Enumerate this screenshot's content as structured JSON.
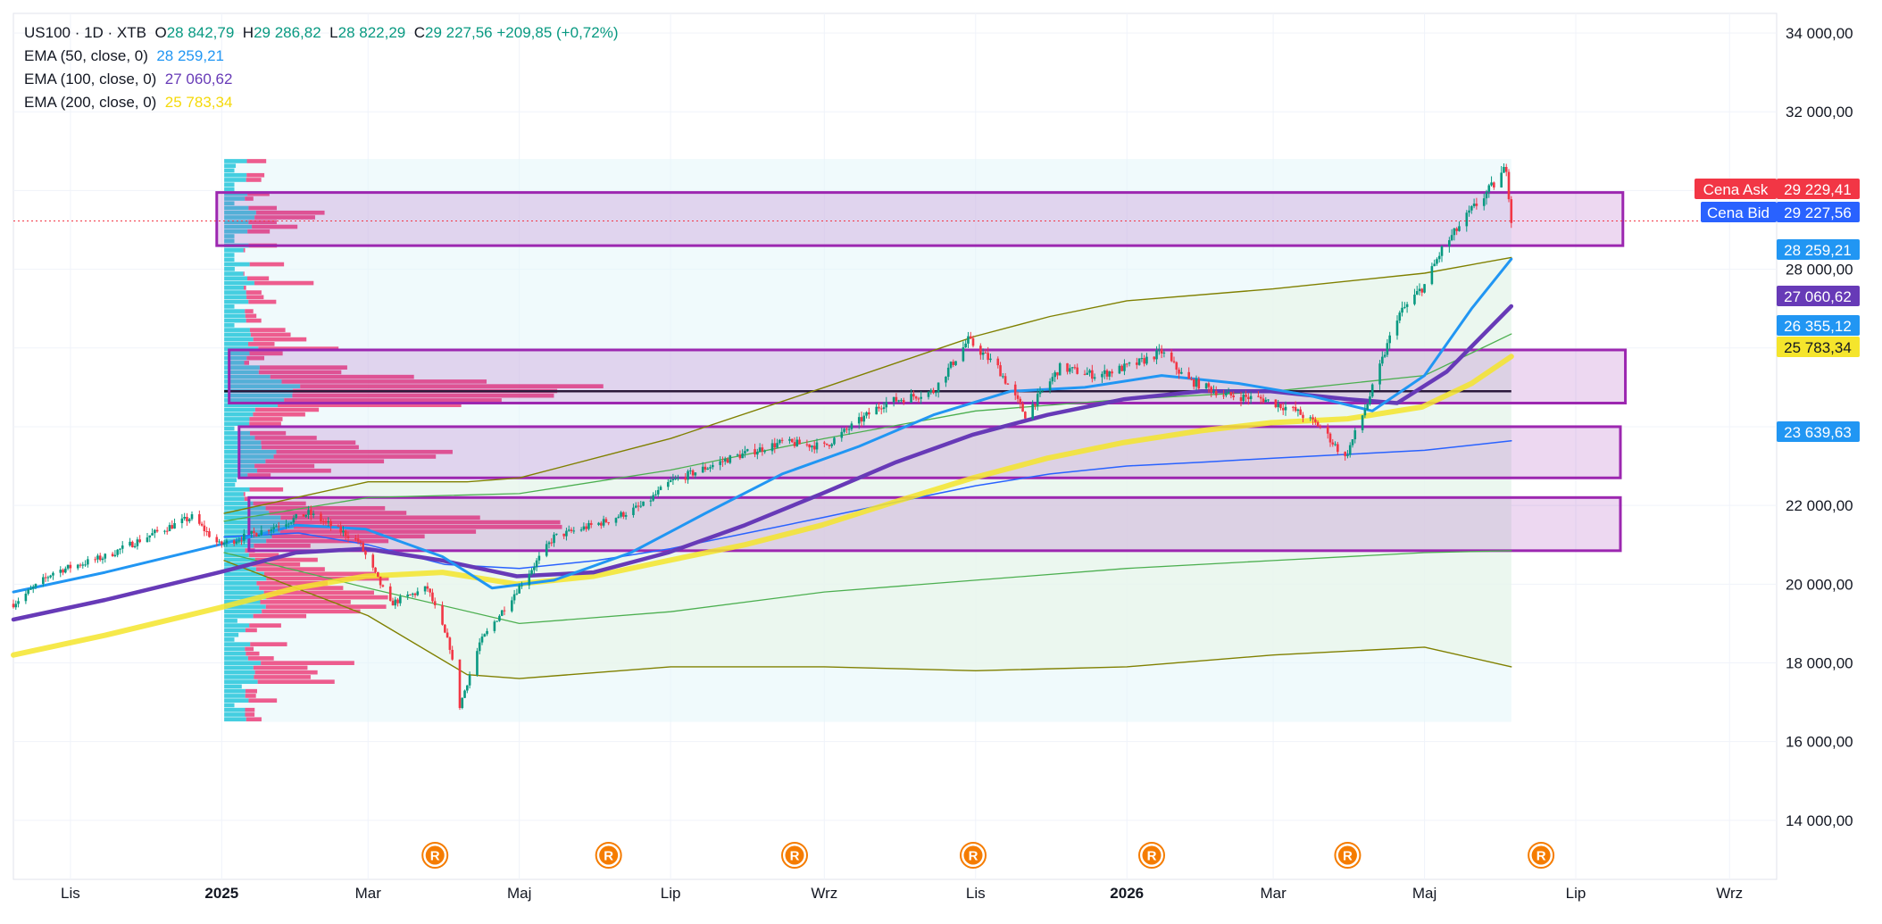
{
  "legend": {
    "symbol": "US100 · 1D · XTB",
    "o_label": "O",
    "o": "28 842,79",
    "h_label": "H",
    "h": "29 286,82",
    "l_label": "L",
    "l": "28 822,29",
    "c_label": "C",
    "c": "29 227,56",
    "change": "+209,85 (+0,72%)",
    "ema50_label": "EMA (50, close, 0)",
    "ema50_value": "28 259,21",
    "ema100_label": "EMA (100, close, 0)",
    "ema100_value": "27 060,62",
    "ema200_label": "EMA (200, close, 0)",
    "ema200_value": "25 783,34"
  },
  "price_tags": {
    "ask_label": "Cena Ask",
    "ask_value": "29 229,41",
    "bid_label": "Cena Bid",
    "bid_value": "29 227,56",
    "tag1": "28 259,21",
    "tag2": "27 060,62",
    "tag3": "26 355,12",
    "tag4": "25 783,34",
    "tag5": "23 639,63"
  },
  "chart_data": {
    "type": "line",
    "symbol": "US100",
    "timeframe": "1D",
    "source": "XTB",
    "y_range": [
      12500,
      34500
    ],
    "y_ticks": [
      14000,
      16000,
      18000,
      20000,
      22000,
      24000,
      26000,
      28000,
      30000,
      32000,
      34000
    ],
    "y_tick_labels": [
      "14 000,00",
      "16 000,00",
      "18 000,00",
      "20 000,00",
      "22 000,00",
      "24 000,00",
      "26 000,00",
      "28 000,00",
      "30 000,00",
      "32 000,00",
      "34 000,00"
    ],
    "x_range": [
      "2024-10-09",
      "2026-09-20"
    ],
    "x_ticks": [
      {
        "date": "2024-11-01",
        "label": "Lis",
        "bold": false
      },
      {
        "date": "2025-01-01",
        "label": "2025",
        "bold": true
      },
      {
        "date": "2025-03-01",
        "label": "Mar",
        "bold": false
      },
      {
        "date": "2025-05-01",
        "label": "Maj",
        "bold": false
      },
      {
        "date": "2025-07-01",
        "label": "Lip",
        "bold": false
      },
      {
        "date": "2025-09-01",
        "label": "Wrz",
        "bold": false
      },
      {
        "date": "2025-11-01",
        "label": "Lis",
        "bold": false
      },
      {
        "date": "2026-01-01",
        "label": "2026",
        "bold": true
      },
      {
        "date": "2026-03-01",
        "label": "Mar",
        "bold": false
      },
      {
        "date": "2026-05-01",
        "label": "Maj",
        "bold": false
      },
      {
        "date": "2026-07-01",
        "label": "Lip",
        "bold": false
      },
      {
        "date": "2026-09-01",
        "label": "Wrz",
        "bold": false
      }
    ],
    "series": [
      {
        "key": "price",
        "color": "#131722",
        "points": [
          [
            "2024-10-09",
            19500
          ],
          [
            "2024-10-25",
            20300
          ],
          [
            "2024-11-15",
            20700
          ],
          [
            "2024-12-05",
            21300
          ],
          [
            "2024-12-20",
            21700
          ],
          [
            "2024-12-31",
            21000
          ],
          [
            "2025-01-15",
            21300
          ],
          [
            "2025-02-05",
            21800
          ],
          [
            "2025-02-25",
            21100
          ],
          [
            "2025-03-10",
            19500
          ],
          [
            "2025-03-25",
            19900
          ],
          [
            "2025-04-03",
            18400
          ],
          [
            "2025-04-07",
            16900
          ],
          [
            "2025-04-15",
            18500
          ],
          [
            "2025-04-25",
            19400
          ],
          [
            "2025-05-15",
            21200
          ],
          [
            "2025-06-05",
            21600
          ],
          [
            "2025-06-20",
            22000
          ],
          [
            "2025-07-01",
            22600
          ],
          [
            "2025-07-25",
            23200
          ],
          [
            "2025-08-15",
            23600
          ],
          [
            "2025-09-01",
            23500
          ],
          [
            "2025-09-25",
            24600
          ],
          [
            "2025-10-15",
            24900
          ],
          [
            "2025-10-29",
            26200
          ],
          [
            "2025-11-10",
            25500
          ],
          [
            "2025-11-21",
            24300
          ],
          [
            "2025-12-05",
            25500
          ],
          [
            "2025-12-20",
            25300
          ],
          [
            "2026-01-05",
            25600
          ],
          [
            "2026-01-15",
            25900
          ],
          [
            "2026-01-25",
            25200
          ],
          [
            "2026-02-10",
            24800
          ],
          [
            "2026-02-25",
            24700
          ],
          [
            "2026-03-10",
            24400
          ],
          [
            "2026-03-20",
            24000
          ],
          [
            "2026-03-30",
            23200
          ],
          [
            "2026-04-08",
            24600
          ],
          [
            "2026-04-20",
            26800
          ],
          [
            "2026-05-01",
            27600
          ],
          [
            "2026-05-08",
            28500
          ],
          [
            "2026-05-20",
            29500
          ],
          [
            "2026-05-31",
            30300
          ],
          [
            "2026-06-03",
            30600
          ],
          [
            "2026-06-05",
            29227
          ]
        ]
      },
      {
        "key": "ema50",
        "color": "#2196f3",
        "points": [
          [
            "2024-10-09",
            19800
          ],
          [
            "2024-11-15",
            20300
          ],
          [
            "2024-12-31",
            21000
          ],
          [
            "2025-01-31",
            21500
          ],
          [
            "2025-02-28",
            21400
          ],
          [
            "2025-03-31",
            20700
          ],
          [
            "2025-04-20",
            19900
          ],
          [
            "2025-05-15",
            20100
          ],
          [
            "2025-06-15",
            20800
          ],
          [
            "2025-07-15",
            21800
          ],
          [
            "2025-08-15",
            22800
          ],
          [
            "2025-09-15",
            23500
          ],
          [
            "2025-10-15",
            24300
          ],
          [
            "2025-11-15",
            24900
          ],
          [
            "2025-12-15",
            25000
          ],
          [
            "2026-01-15",
            25300
          ],
          [
            "2026-02-15",
            25100
          ],
          [
            "2026-03-15",
            24800
          ],
          [
            "2026-04-10",
            24400
          ],
          [
            "2026-05-01",
            25300
          ],
          [
            "2026-05-20",
            27000
          ],
          [
            "2026-06-05",
            28259
          ]
        ]
      },
      {
        "key": "ema100",
        "color": "#673ab7",
        "points": [
          [
            "2024-10-09",
            19100
          ],
          [
            "2024-11-15",
            19600
          ],
          [
            "2024-12-31",
            20300
          ],
          [
            "2025-01-31",
            20800
          ],
          [
            "2025-02-28",
            20900
          ],
          [
            "2025-03-31",
            20600
          ],
          [
            "2025-04-30",
            20200
          ],
          [
            "2025-05-31",
            20300
          ],
          [
            "2025-06-30",
            20800
          ],
          [
            "2025-07-31",
            21500
          ],
          [
            "2025-08-31",
            22300
          ],
          [
            "2025-09-30",
            23100
          ],
          [
            "2025-10-31",
            23800
          ],
          [
            "2025-11-30",
            24300
          ],
          [
            "2025-12-31",
            24700
          ],
          [
            "2026-01-31",
            24900
          ],
          [
            "2026-02-28",
            24900
          ],
          [
            "2026-03-31",
            24700
          ],
          [
            "2026-04-20",
            24600
          ],
          [
            "2026-05-10",
            25400
          ],
          [
            "2026-06-05",
            27060
          ]
        ]
      },
      {
        "key": "ema200",
        "color": "#f5e52c",
        "points": [
          [
            "2024-10-09",
            18200
          ],
          [
            "2024-11-15",
            18700
          ],
          [
            "2024-12-31",
            19400
          ],
          [
            "2025-01-31",
            19900
          ],
          [
            "2025-02-28",
            20200
          ],
          [
            "2025-03-31",
            20300
          ],
          [
            "2025-04-30",
            20000
          ],
          [
            "2025-05-31",
            20200
          ],
          [
            "2025-06-30",
            20600
          ],
          [
            "2025-07-31",
            21000
          ],
          [
            "2025-08-31",
            21500
          ],
          [
            "2025-09-30",
            22100
          ],
          [
            "2025-10-31",
            22700
          ],
          [
            "2025-11-30",
            23200
          ],
          [
            "2025-12-31",
            23600
          ],
          [
            "2026-01-31",
            23900
          ],
          [
            "2026-02-28",
            24100
          ],
          [
            "2026-03-31",
            24200
          ],
          [
            "2026-04-30",
            24500
          ],
          [
            "2026-05-20",
            25100
          ],
          [
            "2026-06-05",
            25783
          ]
        ]
      },
      {
        "key": "vwap",
        "color": "#2962ff",
        "points": [
          [
            "2025-01-02",
            21200
          ],
          [
            "2025-02-01",
            21300
          ],
          [
            "2025-03-01",
            21000
          ],
          [
            "2025-04-01",
            20500
          ],
          [
            "2025-05-01",
            20400
          ],
          [
            "2025-06-01",
            20600
          ],
          [
            "2025-07-01",
            20900
          ],
          [
            "2025-08-01",
            21300
          ],
          [
            "2025-09-01",
            21700
          ],
          [
            "2025-10-01",
            22100
          ],
          [
            "2025-11-01",
            22500
          ],
          [
            "2025-12-01",
            22800
          ],
          [
            "2026-01-01",
            23000
          ],
          [
            "2026-02-01",
            23100
          ],
          [
            "2026-03-01",
            23200
          ],
          [
            "2026-04-01",
            23300
          ],
          [
            "2026-05-01",
            23400
          ],
          [
            "2026-06-05",
            23640
          ]
        ]
      },
      {
        "key": "vwap_upper2",
        "color": "#4caf50",
        "points": [
          [
            "2025-01-02",
            21600
          ],
          [
            "2025-03-01",
            22200
          ],
          [
            "2025-05-01",
            22300
          ],
          [
            "2025-07-01",
            22900
          ],
          [
            "2025-09-01",
            23700
          ],
          [
            "2025-11-01",
            24400
          ],
          [
            "2026-01-01",
            24700
          ],
          [
            "2026-03-01",
            24900
          ],
          [
            "2026-05-01",
            25300
          ],
          [
            "2026-06-05",
            26355
          ]
        ]
      },
      {
        "key": "vwap_lower2",
        "color": "#4caf50",
        "points": [
          [
            "2025-01-02",
            20800
          ],
          [
            "2025-03-01",
            19900
          ],
          [
            "2025-05-01",
            19000
          ],
          [
            "2025-07-01",
            19300
          ],
          [
            "2025-09-01",
            19800
          ],
          [
            "2025-11-01",
            20100
          ],
          [
            "2026-01-01",
            20400
          ],
          [
            "2026-03-01",
            20600
          ],
          [
            "2026-05-01",
            20800
          ],
          [
            "2026-06-05",
            20850
          ]
        ]
      },
      {
        "key": "vwap_upper3",
        "color": "#808000",
        "points": [
          [
            "2025-01-02",
            21800
          ],
          [
            "2025-03-01",
            22600
          ],
          [
            "2025-04-10",
            22600
          ],
          [
            "2025-05-01",
            22700
          ],
          [
            "2025-07-01",
            23700
          ],
          [
            "2025-09-01",
            25000
          ],
          [
            "2025-11-01",
            26300
          ],
          [
            "2025-12-01",
            26800
          ],
          [
            "2026-01-01",
            27200
          ],
          [
            "2026-03-01",
            27500
          ],
          [
            "2026-05-01",
            27900
          ],
          [
            "2026-06-05",
            28300
          ]
        ]
      },
      {
        "key": "vwap_lower3",
        "color": "#808000",
        "points": [
          [
            "2025-01-02",
            20600
          ],
          [
            "2025-03-01",
            19200
          ],
          [
            "2025-04-10",
            17700
          ],
          [
            "2025-05-01",
            17600
          ],
          [
            "2025-07-01",
            17900
          ],
          [
            "2025-09-01",
            17900
          ],
          [
            "2025-11-01",
            17800
          ],
          [
            "2026-01-01",
            17900
          ],
          [
            "2026-03-01",
            18200
          ],
          [
            "2026-05-01",
            18400
          ],
          [
            "2026-06-05",
            17900
          ]
        ]
      }
    ],
    "zones": [
      {
        "y_top": 29950,
        "y_bottom": 28600,
        "x_start": "2024-12-30",
        "x_end": "2026-07-20"
      },
      {
        "y_top": 25950,
        "y_bottom": 24600,
        "x_start": "2025-01-04",
        "x_end": "2026-07-21"
      },
      {
        "y_top": 24000,
        "y_bottom": 22700,
        "x_start": "2025-01-08",
        "x_end": "2026-07-19"
      },
      {
        "y_top": 22200,
        "y_bottom": 20850,
        "x_start": "2025-01-12",
        "x_end": "2026-07-19"
      }
    ],
    "point_of_control": 24900,
    "volume_profile_range": [
      16500,
      30800
    ],
    "current_price": 29227.56,
    "r_markers": [
      "2025-03-28",
      "2025-06-06",
      "2025-08-20",
      "2025-10-31",
      "2026-01-11",
      "2026-03-31",
      "2026-06-17"
    ]
  }
}
